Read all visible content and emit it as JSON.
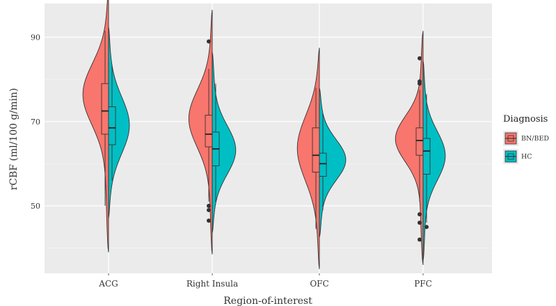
{
  "chart_data": {
    "type": "violin",
    "title": "",
    "xlabel": "Region-of-interest",
    "ylabel": "rCBF (ml/100 g/min)",
    "categories": [
      "ACG",
      "Right Insula",
      "OFC",
      "PFC"
    ],
    "ylim": [
      34,
      98
    ],
    "yticks": [
      50,
      70,
      90
    ],
    "grid": true,
    "legend": {
      "title": "Diagnosis",
      "position": "right",
      "entries": [
        "BN/BED",
        "HC"
      ]
    },
    "series": [
      {
        "name": "BN/BED",
        "color": "#F8766D",
        "violins": [
          {
            "category": "ACG",
            "min": 39,
            "max": 102,
            "mode": 77,
            "spread": 7.5,
            "width": 0.95,
            "box": {
              "whisker_low": 50,
              "q1": 67,
              "median": 72.5,
              "q3": 79,
              "whisker_high": 91.5
            },
            "outliers": []
          },
          {
            "category": "Right Insula",
            "min": 38.5,
            "max": 96.5,
            "mode": 71,
            "spread": 7,
            "width": 0.85,
            "box": {
              "whisker_low": 51,
              "q1": 64,
              "median": 67,
              "q3": 71.5,
              "whisker_high": 82.5
            },
            "outliers": [
              50,
              49,
              46.5,
              89
            ]
          },
          {
            "category": "OFC",
            "min": 35,
            "max": 87.5,
            "mode": 64,
            "spread": 8,
            "width": 0.8,
            "box": {
              "whisker_low": 44.5,
              "q1": 58,
              "median": 62,
              "q3": 68.5,
              "whisker_high": 78
            },
            "outliers": []
          },
          {
            "category": "PFC",
            "min": 36,
            "max": 91.5,
            "mode": 66,
            "spread": 5.5,
            "width": 1.0,
            "box": {
              "whisker_low": 51,
              "q1": 62,
              "median": 65.5,
              "q3": 68.5,
              "whisker_high": 77.5
            },
            "outliers": [
              85,
              79.5,
              79,
              48,
              46,
              42
            ]
          }
        ]
      },
      {
        "name": "HC",
        "color": "#00BFC4",
        "violins": [
          {
            "category": "ACG",
            "min": 47,
            "max": 92.5,
            "mode": 69,
            "spread": 7,
            "width": 0.75,
            "box": {
              "whisker_low": 56,
              "q1": 64.5,
              "median": 68.5,
              "q3": 73.5,
              "whisker_high": 83.5
            },
            "outliers": []
          },
          {
            "category": "Right Insula",
            "min": 43.5,
            "max": 86.5,
            "mode": 63,
            "spread": 6,
            "width": 0.85,
            "box": {
              "whisker_low": 51,
              "q1": 59.5,
              "median": 63.5,
              "q3": 67.5,
              "whisker_high": 79
            },
            "outliers": []
          },
          {
            "category": "OFC",
            "min": 42.5,
            "max": 78,
            "mode": 61,
            "spread": 5,
            "width": 0.95,
            "box": {
              "whisker_low": 49,
              "q1": 57,
              "median": 60,
              "q3": 62.5,
              "whisker_high": 72
            },
            "outliers": []
          },
          {
            "category": "PFC",
            "min": 37,
            "max": 84.5,
            "mode": 62,
            "spread": 6,
            "width": 0.8,
            "box": {
              "whisker_low": 46,
              "q1": 57.5,
              "median": 63,
              "q3": 66,
              "whisker_high": 76.5
            },
            "outliers": [
              45
            ]
          }
        ]
      }
    ]
  }
}
